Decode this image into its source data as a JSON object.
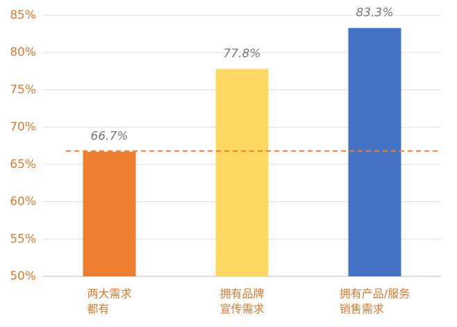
{
  "chart_data": {
    "type": "bar",
    "categories": [
      [
        "两大需求",
        "都有"
      ],
      [
        "拥有品牌",
        "宣传需求"
      ],
      [
        "拥有产品/服务",
        "销售需求"
      ]
    ],
    "values": [
      66.7,
      77.8,
      83.3
    ],
    "value_labels": [
      "66.7%",
      "77.8%",
      "83.3%"
    ],
    "colors": [
      "#ED7D31",
      "#FDD963",
      "#4472C4"
    ],
    "ylim": [
      50,
      85
    ],
    "yticks": [
      {
        "value": 50,
        "label": "50%"
      },
      {
        "value": 55,
        "label": "55%"
      },
      {
        "value": 60,
        "label": "60%"
      },
      {
        "value": 65,
        "label": "65%"
      },
      {
        "value": 70,
        "label": "70%"
      },
      {
        "value": 75,
        "label": "75%"
      },
      {
        "value": 80,
        "label": "80%"
      },
      {
        "value": 85,
        "label": "85%"
      }
    ],
    "grid": true,
    "reference_line": {
      "value": 66.8,
      "color": "#ED7D31"
    }
  }
}
